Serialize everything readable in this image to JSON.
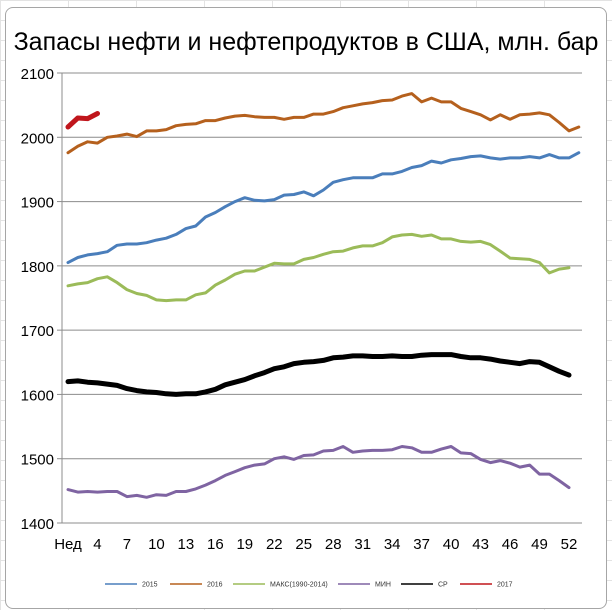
{
  "chart_data": {
    "type": "line",
    "title": "Запасы нефти и нефтепродуктов в США, млн. бар",
    "xlabel": "",
    "ylabel": "",
    "ylim": [
      1400,
      2100
    ],
    "yticks": [
      1400,
      1500,
      1600,
      1700,
      1800,
      1900,
      2000,
      2100
    ],
    "xlim": [
      1,
      53
    ],
    "xtick_labels": [
      {
        "x": 1,
        "label": "Нед"
      },
      {
        "x": 4,
        "label": "4"
      },
      {
        "x": 7,
        "label": "7"
      },
      {
        "x": 10,
        "label": "10"
      },
      {
        "x": 13,
        "label": "13"
      },
      {
        "x": 16,
        "label": "16"
      },
      {
        "x": 19,
        "label": "19"
      },
      {
        "x": 22,
        "label": "22"
      },
      {
        "x": 25,
        "label": "25"
      },
      {
        "x": 28,
        "label": "28"
      },
      {
        "x": 31,
        "label": "31"
      },
      {
        "x": 34,
        "label": "34"
      },
      {
        "x": 37,
        "label": "37"
      },
      {
        "x": 40,
        "label": "40"
      },
      {
        "x": 43,
        "label": "43"
      },
      {
        "x": 46,
        "label": "46"
      },
      {
        "x": 49,
        "label": "49"
      },
      {
        "x": 52,
        "label": "52"
      }
    ],
    "grid": true,
    "legend_position": "bottom",
    "series": [
      {
        "name": "2015",
        "color": "#4a7ebb",
        "width": 3,
        "values": [
          1805,
          1813,
          1817,
          1819,
          1822,
          1832,
          1834,
          1834,
          1836,
          1840,
          1843,
          1849,
          1858,
          1862,
          1876,
          1883,
          1892,
          1900,
          1906,
          1902,
          1901,
          1903,
          1910,
          1911,
          1915,
          1909,
          1918,
          1930,
          1934,
          1937,
          1937,
          1937,
          1943,
          1943,
          1947,
          1953,
          1956,
          1963,
          1960,
          1965,
          1967,
          1970,
          1971,
          1968,
          1966,
          1968,
          1968,
          1970,
          1968,
          1973,
          1968,
          1968,
          1976
        ]
      },
      {
        "name": "2016",
        "color": "#b5601d",
        "width": 3,
        "values": [
          1976,
          1986,
          1993,
          1991,
          2000,
          2002,
          2005,
          2001,
          2010,
          2010,
          2012,
          2018,
          2020,
          2021,
          2026,
          2026,
          2030,
          2033,
          2034,
          2032,
          2031,
          2031,
          2028,
          2031,
          2031,
          2036,
          2036,
          2040,
          2046,
          2049,
          2052,
          2054,
          2057,
          2058,
          2064,
          2068,
          2055,
          2061,
          2055,
          2055,
          2045,
          2040,
          2035,
          2027,
          2035,
          2028,
          2035,
          2036,
          2038,
          2035,
          2023,
          2010,
          2016
        ]
      },
      {
        "name": "МАКС(1990-2014)",
        "color": "#9bbb59",
        "width": 3,
        "values": [
          1769,
          1772,
          1774,
          1780,
          1783,
          1774,
          1763,
          1757,
          1754,
          1747,
          1746,
          1747,
          1747,
          1755,
          1758,
          1770,
          1778,
          1787,
          1792,
          1792,
          1798,
          1804,
          1803,
          1803,
          1810,
          1813,
          1818,
          1822,
          1823,
          1828,
          1831,
          1831,
          1836,
          1845,
          1848,
          1849,
          1846,
          1848,
          1842,
          1842,
          1838,
          1837,
          1838,
          1833,
          1823,
          1812,
          1811,
          1810,
          1805,
          1789,
          1795,
          1797
        ]
      },
      {
        "name": "МИН",
        "color": "#7f64a2",
        "width": 3,
        "values": [
          1452,
          1448,
          1449,
          1448,
          1449,
          1449,
          1441,
          1443,
          1440,
          1444,
          1443,
          1449,
          1449,
          1453,
          1459,
          1466,
          1474,
          1480,
          1486,
          1490,
          1492,
          1500,
          1503,
          1499,
          1505,
          1506,
          1512,
          1513,
          1519,
          1510,
          1512,
          1513,
          1513,
          1514,
          1519,
          1517,
          1510,
          1510,
          1515,
          1519,
          1509,
          1508,
          1499,
          1494,
          1497,
          1493,
          1487,
          1490,
          1476,
          1476,
          1466,
          1455
        ]
      },
      {
        "name": "СР",
        "color": "#000000",
        "width": 5,
        "values": [
          1620,
          1621,
          1619,
          1618,
          1616,
          1614,
          1609,
          1606,
          1604,
          1603,
          1601,
          1600,
          1601,
          1601,
          1604,
          1608,
          1615,
          1619,
          1623,
          1629,
          1634,
          1640,
          1643,
          1648,
          1650,
          1651,
          1653,
          1657,
          1658,
          1660,
          1660,
          1659,
          1659,
          1660,
          1659,
          1659,
          1661,
          1662,
          1662,
          1662,
          1659,
          1657,
          1657,
          1655,
          1652,
          1650,
          1648,
          1651,
          1650,
          1643,
          1636,
          1630
        ]
      },
      {
        "name": "2017",
        "color": "#c0161c",
        "width": 5,
        "values": [
          2016,
          2030,
          2029,
          2037
        ]
      }
    ]
  }
}
